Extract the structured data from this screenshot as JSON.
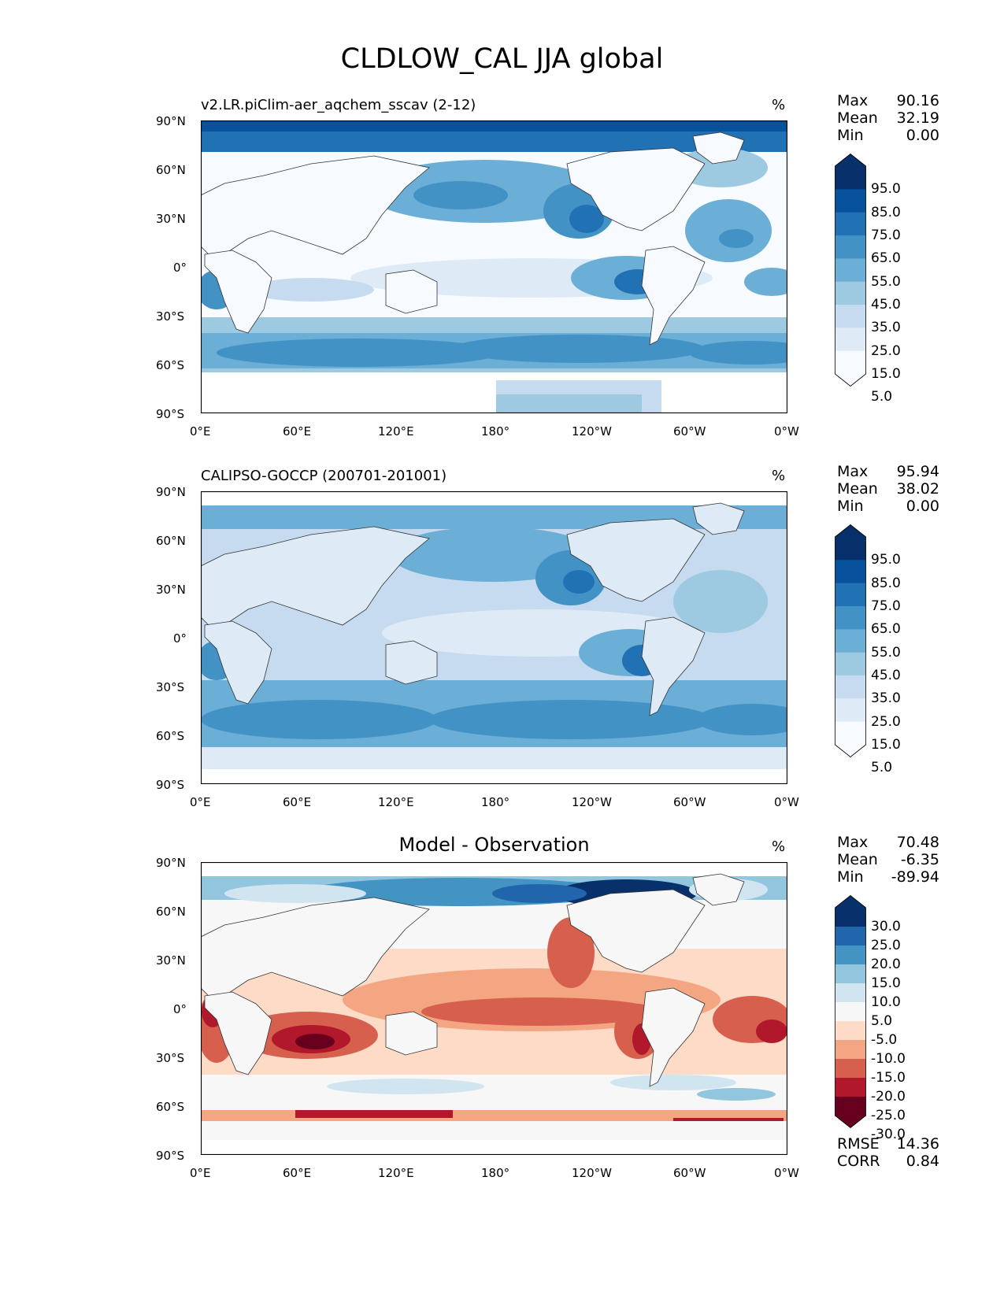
{
  "title": "CLDLOW_CAL JJA global",
  "units_label": "%",
  "lat_ticks": [
    "90°N",
    "60°N",
    "30°N",
    "0°",
    "30°S",
    "60°S",
    "90°S"
  ],
  "lon_ticks": [
    "0°E",
    "60°E",
    "120°E",
    "180°",
    "120°W",
    "60°W",
    "0°W"
  ],
  "panels": [
    {
      "title": "v2.LR.piClim-aer_aqchem_sscav (2-12)",
      "stats": {
        "max_label": "Max",
        "max": "90.16",
        "mean_label": "Mean",
        "mean": "32.19",
        "min_label": "Min",
        "min": "0.00"
      },
      "colorbar_labels": [
        "95.0",
        "85.0",
        "75.0",
        "65.0",
        "55.0",
        "45.0",
        "35.0",
        "25.0",
        "15.0",
        "5.0"
      ],
      "colors": [
        "#08306b",
        "#08519c",
        "#2171b5",
        "#4292c6",
        "#6baed6",
        "#9ecae1",
        "#c6dbef",
        "#deebf7",
        "#f7fbff"
      ]
    },
    {
      "title": "CALIPSO-GOCCP (200701-201001)",
      "stats": {
        "max_label": "Max",
        "max": "95.94",
        "mean_label": "Mean",
        "mean": "38.02",
        "min_label": "Min",
        "min": "0.00"
      },
      "colorbar_labels": [
        "95.0",
        "85.0",
        "75.0",
        "65.0",
        "55.0",
        "45.0",
        "35.0",
        "25.0",
        "15.0",
        "5.0"
      ],
      "colors": [
        "#08306b",
        "#08519c",
        "#2171b5",
        "#4292c6",
        "#6baed6",
        "#9ecae1",
        "#c6dbef",
        "#deebf7",
        "#f7fbff"
      ]
    },
    {
      "title": "Model - Observation",
      "stats": {
        "max_label": "Max",
        "max": "70.48",
        "mean_label": "Mean",
        "mean": "-6.35",
        "min_label": "Min",
        "min": "-89.94"
      },
      "colorbar_labels": [
        "30.0",
        "25.0",
        "20.0",
        "15.0",
        "10.0",
        "5.0",
        "-5.0",
        "-10.0",
        "-15.0",
        "-20.0",
        "-25.0",
        "-30.0"
      ],
      "colors": [
        "#08306b",
        "#2166ac",
        "#4393c3",
        "#92c5de",
        "#d1e5f0",
        "#f7f7f7",
        "#fddbc7",
        "#f4a582",
        "#d6604d",
        "#b2182b",
        "#67001f"
      ],
      "metrics": {
        "rmse_label": "RMSE",
        "rmse": "14.36",
        "corr_label": "CORR",
        "corr": "0.84"
      }
    }
  ]
}
